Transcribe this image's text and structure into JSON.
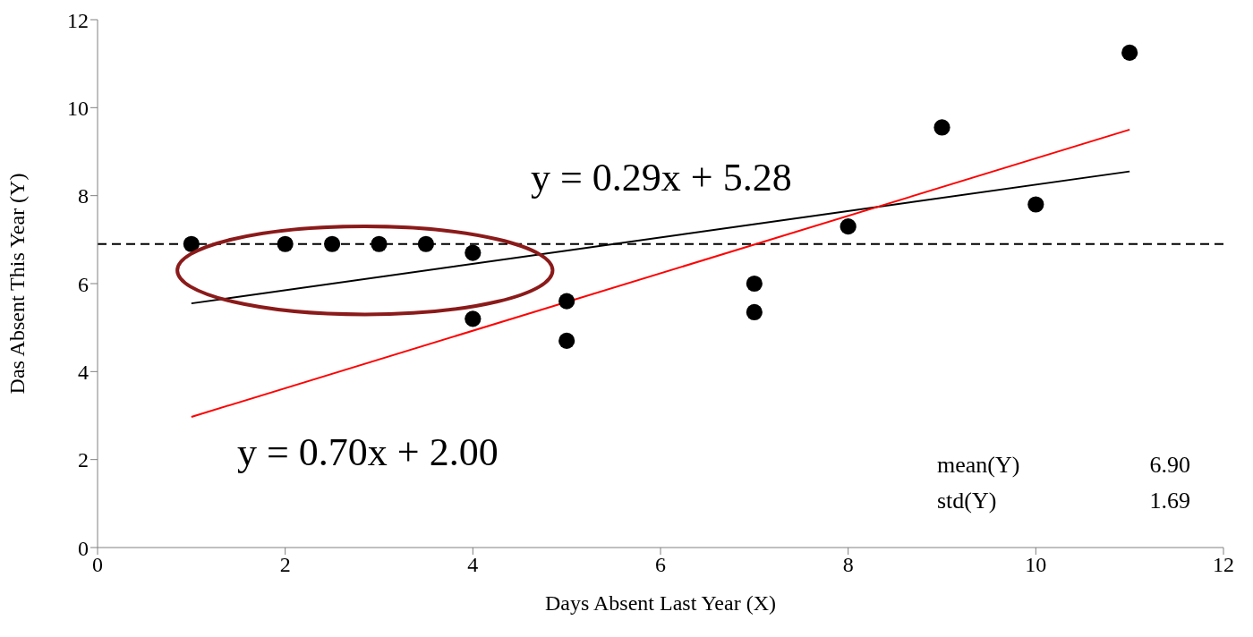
{
  "chart_data": {
    "type": "scatter",
    "xlabel": "Days Absent Last Year (X)",
    "ylabel": "Das Absent This Year (Y)",
    "xlim": [
      0,
      12
    ],
    "xticks": [
      0,
      2,
      4,
      6,
      8,
      10,
      12
    ],
    "ylim": [
      0,
      12
    ],
    "yticks": [
      0,
      2,
      4,
      6,
      8,
      10,
      12
    ],
    "grid": false,
    "legend": false,
    "series": [
      {
        "type": "scatter",
        "marker": "circle",
        "color": "#000000",
        "x": [
          1,
          2,
          2.5,
          3,
          3.5,
          4,
          4,
          5,
          5,
          7,
          7,
          8,
          9,
          10,
          11
        ],
        "values": [
          6.9,
          6.9,
          6.9,
          6.9,
          6.9,
          6.7,
          5.2,
          5.6,
          4.7,
          6.0,
          5.35,
          7.3,
          9.55,
          7.8,
          11.25
        ]
      },
      {
        "type": "line",
        "color": "#000000",
        "x": [
          1,
          11
        ],
        "values": [
          5.55,
          8.55
        ]
      },
      {
        "type": "line",
        "color": "#ff0000",
        "x": [
          1,
          11
        ],
        "values": [
          2.97,
          9.5
        ]
      }
    ],
    "ref_lines": [
      {
        "axis": "y",
        "value": 6.9,
        "color": "#000000",
        "line_style": "dashed"
      }
    ],
    "annotations": [
      "y = 0.29x + 5.28",
      "y = 0.70x + 2.00",
      "mean(Y)",
      "6.90",
      "std(Y)",
      "1.69"
    ]
  }
}
